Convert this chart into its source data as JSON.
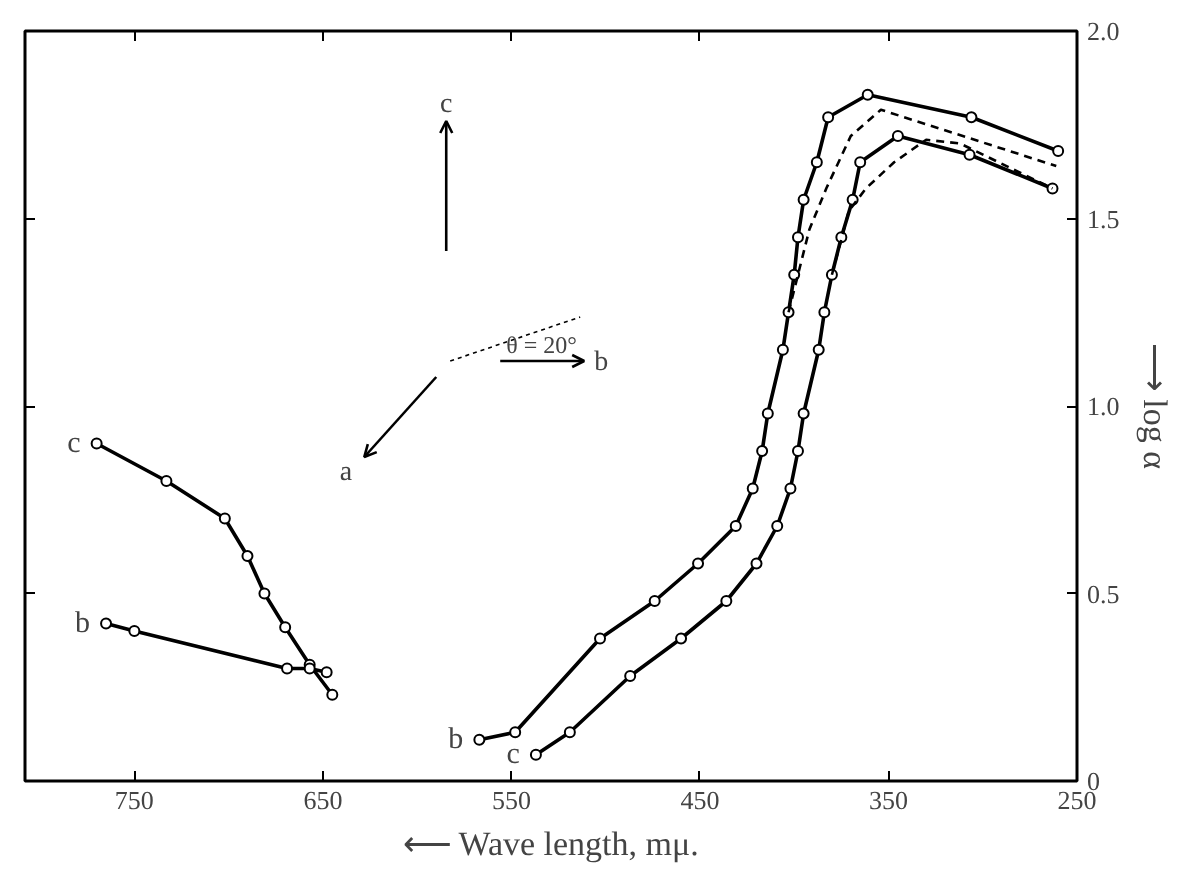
{
  "chart_data": {
    "type": "line",
    "xlabel": "⟵ Wave length, mμ.",
    "ylabel": "⟶ log α",
    "xlim": [
      808,
      250
    ],
    "ylim": [
      0,
      2.0
    ],
    "xticks": [
      750,
      650,
      550,
      450,
      350,
      250
    ],
    "yticks": [
      0,
      0.5,
      {
        "value": 1,
        "label": "1.0"
      },
      1.5,
      {
        "value": 2,
        "label": "2.0"
      }
    ],
    "marker": "circle",
    "line_style": "solid",
    "grid": false,
    "annotations": [
      "c",
      "a",
      "b",
      "θ = 20°"
    ],
    "series": [
      {
        "name": "c",
        "color": "#000000",
        "x": [
          770,
          733,
          702,
          690,
          681,
          670,
          657,
          645
        ],
        "values": [
          0.9,
          0.8,
          0.7,
          0.6,
          0.5,
          0.41,
          0.31,
          0.23
        ]
      },
      {
        "name": "b",
        "color": "#000000",
        "x": [
          765,
          750,
          669,
          657,
          648
        ],
        "values": [
          0.42,
          0.4,
          0.3,
          0.3,
          0.29
        ]
      },
      {
        "name": "b",
        "color": "#000000",
        "x": [
          567,
          548,
          503,
          474,
          451,
          431,
          422,
          417,
          414,
          406,
          403,
          400,
          398,
          395,
          388,
          382,
          361,
          306,
          260
        ],
        "values": [
          0.11,
          0.13,
          0.38,
          0.48,
          0.58,
          0.68,
          0.78,
          0.88,
          0.98,
          1.15,
          1.25,
          1.35,
          1.45,
          1.55,
          1.65,
          1.77,
          1.83,
          1.77,
          1.68
        ]
      },
      {
        "name": "c",
        "color": "#000000",
        "x": [
          537,
          519,
          487,
          460,
          436,
          420,
          409,
          402,
          398,
          395,
          387,
          384,
          380,
          375,
          369,
          365,
          345,
          307,
          263
        ],
        "values": [
          0.07,
          0.13,
          0.28,
          0.38,
          0.48,
          0.58,
          0.68,
          0.78,
          0.88,
          0.98,
          1.15,
          1.25,
          1.35,
          1.45,
          1.55,
          1.65,
          1.72,
          1.67,
          1.58
        ]
      },
      {
        "color": "#000000",
        "marker": "none",
        "line_style": "dashed",
        "x": [
          403,
          392,
          383,
          370,
          354,
          261
        ],
        "values": [
          1.25,
          1.47,
          1.58,
          1.72,
          1.79,
          1.64
        ]
      },
      {
        "color": "#000000",
        "marker": "none",
        "line_style": "dashed",
        "x": [
          380,
          371,
          362,
          347,
          330,
          312,
          263
        ],
        "values": [
          1.35,
          1.52,
          1.58,
          1.65,
          1.71,
          1.7,
          1.58
        ]
      }
    ]
  }
}
